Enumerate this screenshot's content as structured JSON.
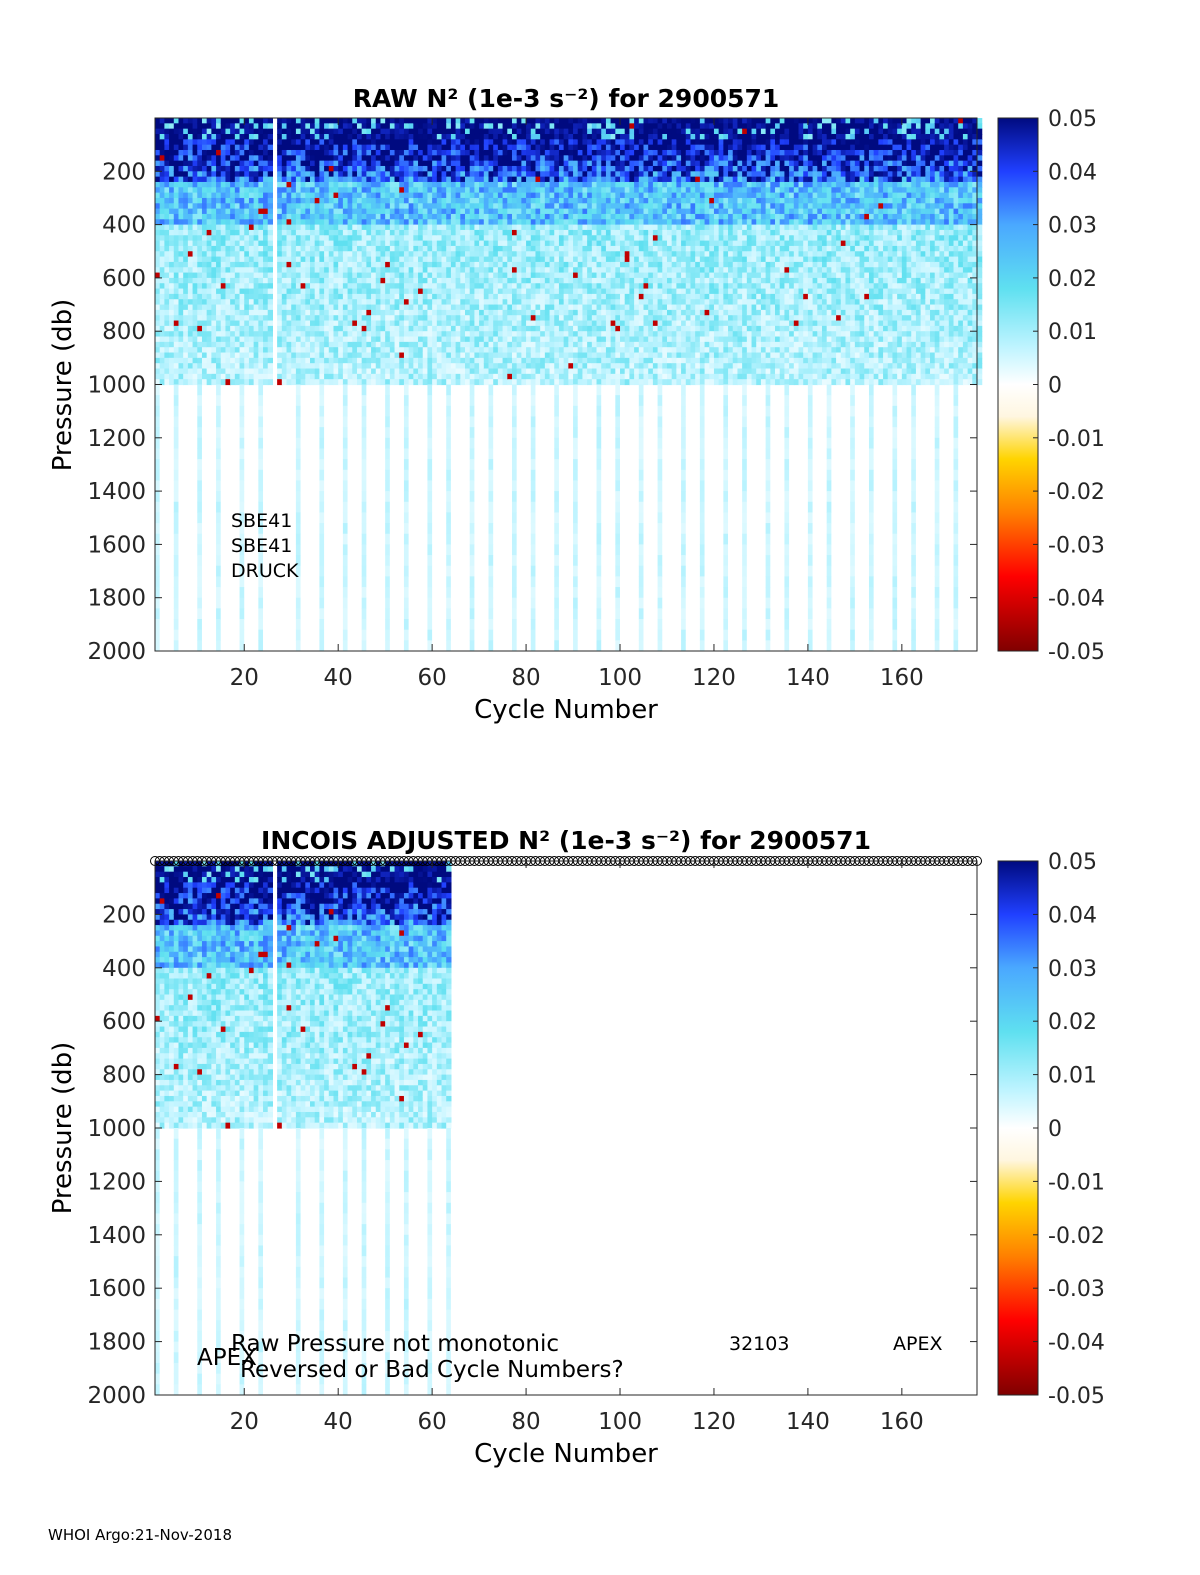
{
  "footer": "WHOI Argo:21-Nov-2018",
  "colorscale": [
    "#800000",
    "#ff0000",
    "#ff8000",
    "#ffd400",
    "#fff6e0",
    "#ffffff",
    "#bff4ff",
    "#5fe0f0",
    "#4aa8ff",
    "#2040ff",
    "#000a80"
  ],
  "chart_data": [
    {
      "type": "heatmap",
      "title": "RAW N² (1e-3 s⁻²) for 2900571",
      "xlabel": "Cycle Number",
      "ylabel": "Pressure (db)",
      "xlim": [
        1,
        176
      ],
      "ylim": [
        0,
        2000
      ],
      "y_reversed": true,
      "xticks": [
        20,
        40,
        60,
        80,
        100,
        120,
        140,
        160
      ],
      "yticks": [
        200,
        400,
        600,
        800,
        1000,
        1200,
        1400,
        1600,
        1800,
        2000
      ],
      "colorbar": {
        "min": -0.05,
        "max": 0.05,
        "ticks": [
          "0.05",
          "0.04",
          "0.03",
          "0.02",
          "0.01",
          "0",
          "-0.01",
          "-0.02",
          "-0.03",
          "-0.04",
          "-0.05"
        ]
      },
      "profile_max_pressure": 1000,
      "gap_cycles": [
        26
      ],
      "deep_profile_cycles": [
        1,
        5,
        10,
        14,
        19,
        23,
        31,
        36,
        41,
        45,
        50,
        54,
        59,
        63,
        68,
        72,
        77,
        81,
        86,
        90,
        95,
        99,
        104,
        108,
        113,
        117,
        122,
        126,
        131,
        135,
        140,
        144,
        149,
        153,
        158,
        162,
        167,
        171
      ],
      "annotations": [
        "SBE41",
        "SBE41",
        "DRUCK"
      ],
      "x_data_end": 176
    },
    {
      "type": "heatmap",
      "title": "INCOIS  ADJUSTED N² (1e-3 s⁻²) for 2900571",
      "xlabel": "Cycle Number",
      "ylabel": "Pressure (db)",
      "xlim": [
        1,
        176
      ],
      "ylim": [
        0,
        2000
      ],
      "y_reversed": true,
      "xticks": [
        20,
        40,
        60,
        80,
        100,
        120,
        140,
        160
      ],
      "yticks": [
        200,
        400,
        600,
        800,
        1000,
        1200,
        1400,
        1600,
        1800,
        2000
      ],
      "colorbar": {
        "min": -0.05,
        "max": 0.05,
        "ticks": [
          "0.05",
          "0.04",
          "0.03",
          "0.02",
          "0.01",
          "0",
          "-0.01",
          "-0.02",
          "-0.03",
          "-0.04",
          "-0.05"
        ]
      },
      "profile_max_pressure": 1000,
      "gap_cycles": [
        26
      ],
      "deep_profile_cycles": [
        1,
        5,
        10,
        14,
        19,
        23,
        31,
        36,
        41,
        45,
        50,
        54,
        59,
        63
      ],
      "x_data_end": 63,
      "marker_row": {
        "pressure": 0,
        "from": 1,
        "to": 176,
        "marker": "circle"
      },
      "annotations": [
        "Raw Pressure not monotonic",
        "Reversed or Bad Cycle Numbers?",
        "APEX",
        "32103",
        "APEX"
      ]
    }
  ]
}
